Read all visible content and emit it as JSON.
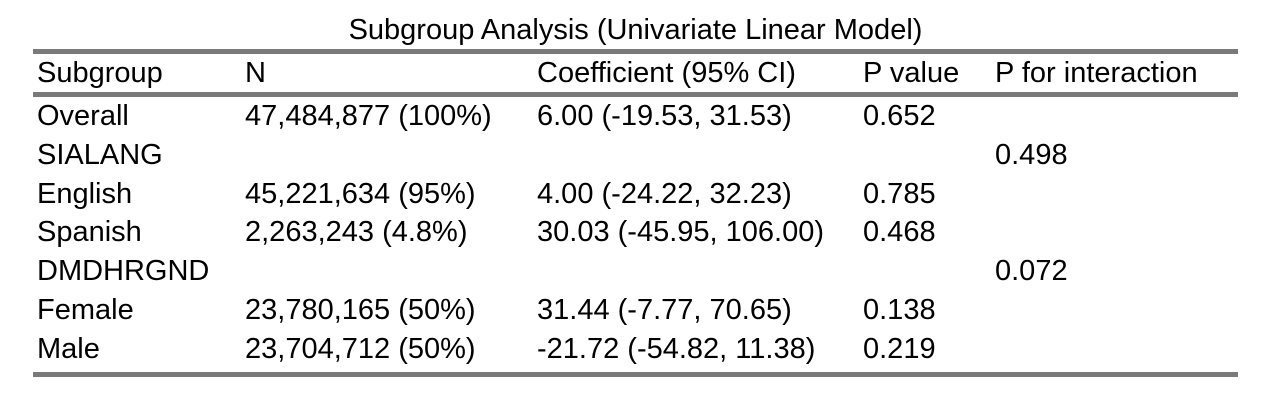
{
  "title": "Subgroup Analysis (Univariate Linear Model)",
  "columns": [
    "Subgroup",
    "N",
    "Coefficient (95% CI)",
    "P value",
    "P for interaction"
  ],
  "rows": [
    {
      "subgroup": "Overall",
      "n": "47,484,877 (100%)",
      "coef": "6.00 (-19.53, 31.53)",
      "p": "0.652",
      "pint": ""
    },
    {
      "subgroup": "SIALANG",
      "n": "",
      "coef": "",
      "p": "",
      "pint": "0.498"
    },
    {
      "subgroup": "English",
      "n": "45,221,634 (95%)",
      "coef": "4.00 (-24.22, 32.23)",
      "p": "0.785",
      "pint": ""
    },
    {
      "subgroup": "Spanish",
      "n": "2,263,243 (4.8%)",
      "coef": "30.03 (-45.95, 106.00)",
      "p": "0.468",
      "pint": ""
    },
    {
      "subgroup": "DMDHRGND",
      "n": "",
      "coef": "",
      "p": "",
      "pint": "0.072"
    },
    {
      "subgroup": "Female",
      "n": "23,780,165 (50%)",
      "coef": "31.44 (-7.77, 70.65)",
      "p": "0.138",
      "pint": ""
    },
    {
      "subgroup": "Male",
      "n": "23,704,712 (50%)",
      "coef": "-21.72 (-54.82, 11.38)",
      "p": "0.219",
      "pint": ""
    }
  ],
  "colors": {
    "rule": "#7a7a7a",
    "text": "#000000",
    "background": "#ffffff"
  }
}
